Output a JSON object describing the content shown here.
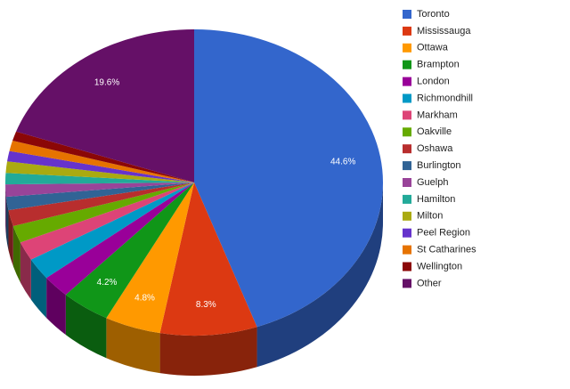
{
  "chart_data": {
    "type": "pie",
    "categories": [
      "Toronto",
      "Mississauga",
      "Ottawa",
      "Brampton",
      "London",
      "Richmondhill",
      "Markham",
      "Oakville",
      "Oshawa",
      "Burlington",
      "Guelph",
      "Hamilton",
      "Milton",
      "Peel Region",
      "St Catharines",
      "Wellington",
      "Other"
    ],
    "values": [
      44.6,
      8.3,
      4.8,
      4.2,
      2.4,
      2.3,
      2.0,
      1.8,
      1.7,
      1.4,
      1.3,
      1.2,
      1.2,
      1.1,
      1.1,
      1.0,
      19.6
    ],
    "value_labels": [
      "44.6%",
      "8.3%",
      "4.8%",
      "4.2%",
      null,
      null,
      null,
      null,
      null,
      null,
      null,
      null,
      null,
      null,
      null,
      null,
      "19.6%"
    ],
    "colors": [
      "#3366cc",
      "#dc3912",
      "#ff9900",
      "#109618",
      "#990099",
      "#0099c6",
      "#dd4477",
      "#66aa00",
      "#b82e2e",
      "#316395",
      "#994499",
      "#22aa99",
      "#aaaa11",
      "#6633cc",
      "#e67300",
      "#8b0707",
      "#651067"
    ],
    "legend": "right"
  }
}
